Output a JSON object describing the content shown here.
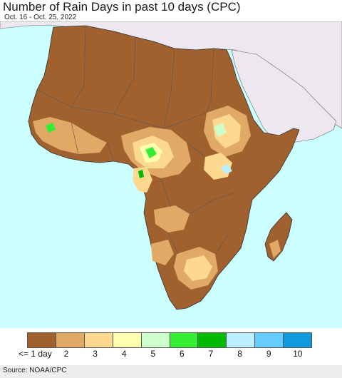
{
  "title": "Number of Rain Days in past 10 days (CPC)",
  "date_range": "Oct. 16 - Oct. 25, 2022",
  "source": "Source: NOAA/CPC",
  "colors": {
    "ocean": "#ccffff",
    "non_region_land": "#ede8f0",
    "border": "#555555",
    "admin_border": "#8a8a8a"
  },
  "legend": {
    "items": [
      {
        "label": "<= 1 day",
        "color": "#a0612f"
      },
      {
        "label": "2",
        "color": "#e0aa66"
      },
      {
        "label": "3",
        "color": "#fcd98e"
      },
      {
        "label": "4",
        "color": "#ffffb0"
      },
      {
        "label": "5",
        "color": "#ccffcc"
      },
      {
        "label": "6",
        "color": "#33ee33"
      },
      {
        "label": "7",
        "color": "#00bb00"
      },
      {
        "label": "8",
        "color": "#bbeeff"
      },
      {
        "label": "9",
        "color": "#66ccff"
      },
      {
        "label": "10",
        "color": "#1199dd"
      }
    ]
  }
}
